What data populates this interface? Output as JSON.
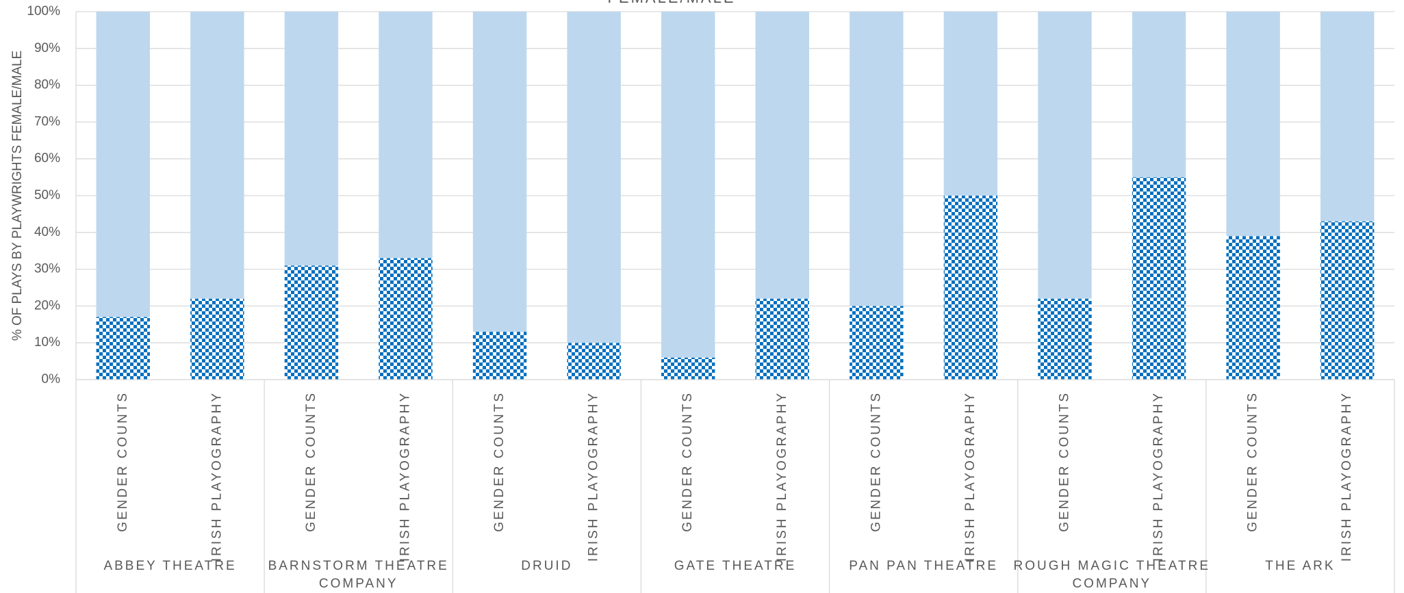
{
  "chart_data": {
    "type": "stacked_bar",
    "title": "FEMALE/MALE",
    "y_label": "% OF PLAYS BY PLAYWRIGHTS FEMALE/MALE",
    "categories": [
      "GENDER COUNTS",
      "IRISH PLAYOGRAPHY",
      "GENDER COUNTS",
      "IRISH PLAYOGRAPHY",
      "GENDER COUNTS",
      "IRISH PLAYOGRAPHY",
      "GENDER COUNTS",
      "IRISH PLAYOGRAPHY",
      "GENDER COUNTS",
      "IRISH PLAYOGRAPHY",
      "GENDER COUNTS",
      "IRISH PLAYOGRAPHY",
      "GENDER COUNTS",
      "IRISH PLAYOGRAPHY"
    ],
    "groups": [
      "ABBEY THEATRE",
      "BARNSTORM THEATRE COMPANY",
      "DRUID",
      "GATE THEATRE",
      "PAN PAN THEATRE",
      "ROUGH MAGIC THEATRE COMPANY",
      "THE ARK"
    ],
    "series": [
      {
        "color": "#0070c0",
        "pattern": "checker",
        "values": [
          17,
          22,
          31,
          33,
          13,
          10,
          6,
          22,
          20,
          50,
          22,
          55,
          39,
          43
        ]
      },
      {
        "color": "#bdd7ee",
        "values": [
          83,
          78,
          69,
          67,
          87,
          90,
          94,
          78,
          80,
          50,
          78,
          45,
          61,
          57
        ]
      }
    ],
    "ylim": [
      0,
      100
    ],
    "yticks": [
      {
        "value": 0,
        "label": "0%"
      },
      {
        "value": 10,
        "label": "10%"
      },
      {
        "value": 20,
        "label": "20%"
      },
      {
        "value": 30,
        "label": "30%"
      },
      {
        "value": 40,
        "label": "40%"
      },
      {
        "value": 50,
        "label": "50%"
      },
      {
        "value": 60,
        "label": "60%"
      },
      {
        "value": 70,
        "label": "70%"
      },
      {
        "value": 80,
        "label": "80%"
      },
      {
        "value": 90,
        "label": "90%"
      },
      {
        "value": 100,
        "label": "100%"
      }
    ],
    "grid": true
  }
}
